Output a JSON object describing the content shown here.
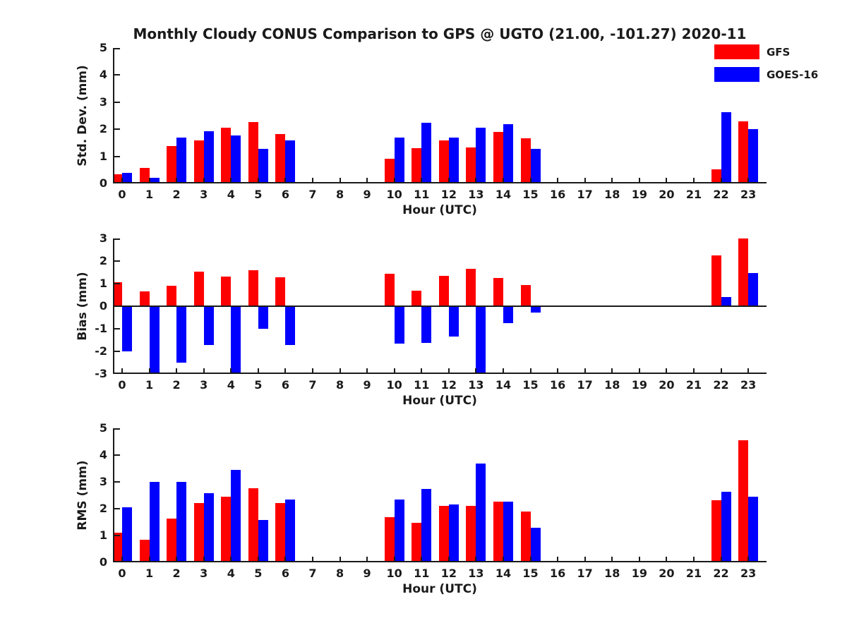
{
  "title": "Monthly Cloudy CONUS Comparison to GPS @ UGTO (21.00, -101.27) 2020-11",
  "legend": [
    {
      "label": "GFS",
      "color": "#ff0000"
    },
    {
      "label": "GOES-16",
      "color": "#0000ff"
    }
  ],
  "colors": {
    "gfs": "#ff0000",
    "goes16": "#0000ff",
    "axis": "#1a1a1a"
  },
  "chart_data": [
    {
      "type": "bar",
      "ylabel": "Std. Dev. (mm)",
      "xlabel": "Hour (UTC)",
      "ylim": [
        0,
        5
      ],
      "yticks": [
        0,
        1,
        2,
        3,
        4,
        5
      ],
      "grid": false,
      "legend_position": "top-right",
      "categories": [
        "0",
        "1",
        "2",
        "3",
        "4",
        "5",
        "6",
        "7",
        "8",
        "9",
        "10",
        "11",
        "12",
        "13",
        "14",
        "15",
        "16",
        "17",
        "18",
        "19",
        "20",
        "21",
        "22",
        "23"
      ],
      "series": [
        {
          "name": "GFS",
          "color": "#ff0000",
          "values": [
            0.35,
            0.57,
            1.37,
            1.6,
            2.07,
            2.27,
            1.83,
            null,
            null,
            null,
            0.9,
            1.3,
            1.58,
            1.32,
            1.91,
            1.67,
            null,
            null,
            null,
            null,
            null,
            null,
            0.52,
            2.28
          ]
        },
        {
          "name": "GOES-16",
          "color": "#0000ff",
          "values": [
            0.38,
            0.22,
            1.7,
            1.93,
            1.78,
            1.27,
            1.6,
            null,
            null,
            null,
            1.7,
            2.23,
            1.7,
            2.07,
            2.19,
            1.28,
            null,
            null,
            null,
            null,
            null,
            null,
            2.62,
            2.0
          ]
        }
      ]
    },
    {
      "type": "bar",
      "ylabel": "Bias (mm)",
      "xlabel": "Hour (UTC)",
      "ylim": [
        -3,
        3
      ],
      "yticks": [
        -3,
        -2,
        -1,
        0,
        1,
        2,
        3
      ],
      "grid": false,
      "zero_line": true,
      "categories": [
        "0",
        "1",
        "2",
        "3",
        "4",
        "5",
        "6",
        "7",
        "8",
        "9",
        "10",
        "11",
        "12",
        "13",
        "14",
        "15",
        "16",
        "17",
        "18",
        "19",
        "20",
        "21",
        "22",
        "23"
      ],
      "series": [
        {
          "name": "GFS",
          "color": "#ff0000",
          "values": [
            1.07,
            0.65,
            0.9,
            1.53,
            1.32,
            1.6,
            1.27,
            null,
            null,
            null,
            1.43,
            0.68,
            1.33,
            1.65,
            1.25,
            0.95,
            null,
            null,
            null,
            null,
            null,
            null,
            2.25,
            3.0
          ]
        },
        {
          "name": "GOES-16",
          "color": "#0000ff",
          "values": [
            -2.0,
            -3.0,
            -2.5,
            -1.73,
            -3.0,
            -1.0,
            -1.73,
            null,
            null,
            null,
            -1.65,
            -1.62,
            -1.33,
            -3.0,
            -0.75,
            -0.27,
            null,
            null,
            null,
            null,
            null,
            null,
            0.4,
            1.47
          ]
        }
      ]
    },
    {
      "type": "bar",
      "ylabel": "RMS (mm)",
      "xlabel": "Hour (UTC)",
      "ylim": [
        0,
        5
      ],
      "yticks": [
        0,
        1,
        2,
        3,
        4,
        5
      ],
      "grid": false,
      "categories": [
        "0",
        "1",
        "2",
        "3",
        "4",
        "5",
        "6",
        "7",
        "8",
        "9",
        "10",
        "11",
        "12",
        "13",
        "14",
        "15",
        "16",
        "17",
        "18",
        "19",
        "20",
        "21",
        "22",
        "23"
      ],
      "series": [
        {
          "name": "GFS",
          "color": "#ff0000",
          "values": [
            1.1,
            0.85,
            1.62,
            2.22,
            2.45,
            2.77,
            2.2,
            null,
            null,
            null,
            1.68,
            1.48,
            2.1,
            2.1,
            2.27,
            1.9,
            null,
            null,
            null,
            null,
            null,
            null,
            2.32,
            4.55
          ]
        },
        {
          "name": "GOES-16",
          "color": "#0000ff",
          "values": [
            2.05,
            3.0,
            3.0,
            2.57,
            3.45,
            1.57,
            2.35,
            null,
            null,
            null,
            2.35,
            2.73,
            2.17,
            3.68,
            2.27,
            1.3,
            null,
            null,
            null,
            null,
            null,
            null,
            2.63,
            2.45
          ]
        }
      ]
    }
  ]
}
